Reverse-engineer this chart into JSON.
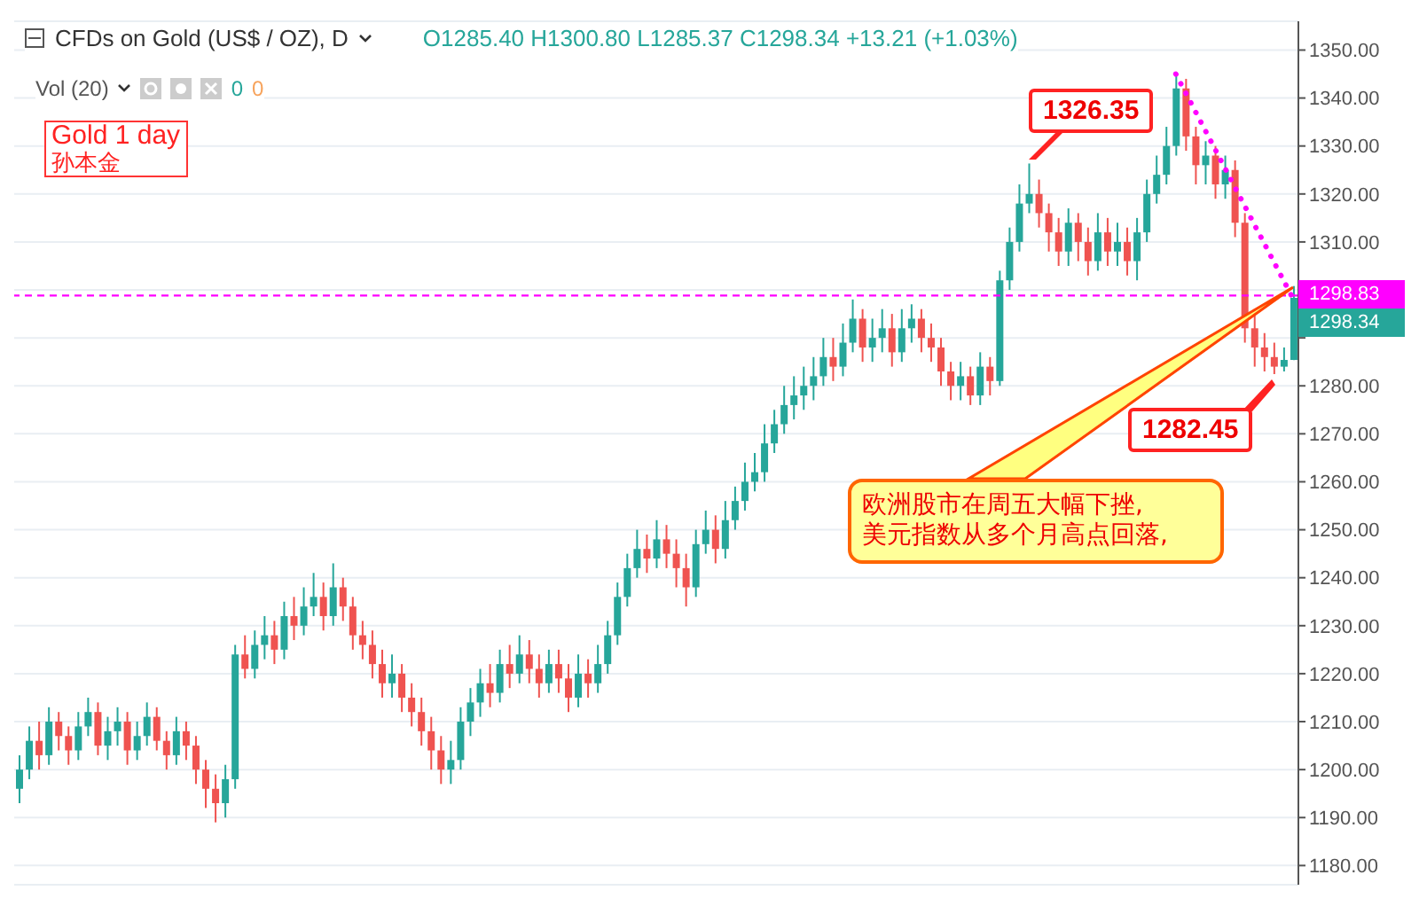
{
  "chart_data": {
    "type": "candlestick",
    "title": "CFDs on Gold (US$ / OZ), D",
    "subtitle": "O1285.40 H1300.80 L1285.37 C1298.34 +13.21 (+1.03%)",
    "categories": [
      null,
      null,
      null,
      null,
      null,
      null,
      null,
      null,
      null,
      null,
      null,
      null,
      null,
      null,
      null,
      null,
      null,
      null,
      null,
      null,
      null,
      null,
      null,
      null,
      null,
      null,
      null,
      null,
      null,
      null,
      null,
      null,
      null,
      null,
      null,
      null,
      null,
      null,
      null,
      null,
      null,
      null,
      null,
      null,
      null,
      null,
      null,
      null,
      null,
      null,
      null,
      null,
      null,
      null,
      null,
      null,
      null,
      null,
      null,
      null,
      null,
      null,
      null,
      null,
      null,
      null,
      null,
      null,
      null,
      null,
      null,
      null,
      null,
      null,
      null,
      null,
      null,
      null,
      null,
      null,
      null,
      null,
      null,
      null,
      null,
      null,
      null,
      null,
      null,
      null,
      null,
      null,
      null,
      null,
      null,
      null,
      null,
      null,
      null,
      null,
      null,
      null,
      null,
      null,
      null,
      null,
      null,
      null,
      null,
      null,
      null,
      null,
      null,
      null,
      null,
      null,
      null,
      null,
      null,
      null,
      null,
      null,
      null,
      null,
      null,
      null,
      null,
      null,
      null,
      null,
      null
    ],
    "ohlc": [
      [
        1196,
        1203,
        1193,
        1200
      ],
      [
        1200,
        1209,
        1198,
        1206
      ],
      [
        1206,
        1210,
        1200,
        1203
      ],
      [
        1203,
        1213,
        1201,
        1210
      ],
      [
        1210,
        1212,
        1204,
        1207
      ],
      [
        1207,
        1209,
        1201,
        1204
      ],
      [
        1204,
        1212,
        1202,
        1209
      ],
      [
        1209,
        1215,
        1207,
        1212
      ],
      [
        1212,
        1214,
        1203,
        1205
      ],
      [
        1205,
        1211,
        1202,
        1208
      ],
      [
        1208,
        1213,
        1205,
        1210
      ],
      [
        1210,
        1212,
        1201,
        1204
      ],
      [
        1204,
        1210,
        1202,
        1207
      ],
      [
        1207,
        1214,
        1205,
        1211
      ],
      [
        1211,
        1213,
        1204,
        1206
      ],
      [
        1206,
        1208,
        1200,
        1203
      ],
      [
        1203,
        1211,
        1201,
        1208
      ],
      [
        1208,
        1210,
        1202,
        1205
      ],
      [
        1205,
        1207,
        1197,
        1200
      ],
      [
        1200,
        1202,
        1192,
        1196
      ],
      [
        1196,
        1199,
        1189,
        1193
      ],
      [
        1193,
        1201,
        1190,
        1198
      ],
      [
        1198,
        1226,
        1196,
        1224
      ],
      [
        1224,
        1228,
        1219,
        1221
      ],
      [
        1221,
        1229,
        1219,
        1226
      ],
      [
        1226,
        1232,
        1223,
        1228
      ],
      [
        1228,
        1231,
        1222,
        1225
      ],
      [
        1225,
        1235,
        1223,
        1232
      ],
      [
        1232,
        1236,
        1227,
        1230
      ],
      [
        1230,
        1238,
        1228,
        1234
      ],
      [
        1234,
        1241,
        1232,
        1236
      ],
      [
        1236,
        1239,
        1229,
        1232
      ],
      [
        1232,
        1243,
        1230,
        1238
      ],
      [
        1238,
        1240,
        1231,
        1234
      ],
      [
        1234,
        1236,
        1225,
        1228
      ],
      [
        1228,
        1231,
        1223,
        1226
      ],
      [
        1226,
        1229,
        1219,
        1222
      ],
      [
        1222,
        1225,
        1215,
        1218
      ],
      [
        1218,
        1224,
        1215,
        1220
      ],
      [
        1220,
        1222,
        1212,
        1215
      ],
      [
        1215,
        1218,
        1209,
        1212
      ],
      [
        1212,
        1215,
        1205,
        1208
      ],
      [
        1208,
        1211,
        1200,
        1204
      ],
      [
        1204,
        1207,
        1197,
        1200
      ],
      [
        1200,
        1206,
        1197,
        1202
      ],
      [
        1202,
        1213,
        1200,
        1210
      ],
      [
        1210,
        1217,
        1207,
        1214
      ],
      [
        1214,
        1221,
        1211,
        1218
      ],
      [
        1218,
        1222,
        1213,
        1216
      ],
      [
        1216,
        1225,
        1214,
        1222
      ],
      [
        1222,
        1226,
        1217,
        1220
      ],
      [
        1220,
        1228,
        1218,
        1224
      ],
      [
        1224,
        1227,
        1218,
        1221
      ],
      [
        1221,
        1224,
        1215,
        1218
      ],
      [
        1218,
        1225,
        1216,
        1222
      ],
      [
        1222,
        1225,
        1216,
        1219
      ],
      [
        1219,
        1222,
        1212,
        1215
      ],
      [
        1215,
        1224,
        1213,
        1220
      ],
      [
        1220,
        1223,
        1215,
        1218
      ],
      [
        1218,
        1226,
        1216,
        1222
      ],
      [
        1222,
        1231,
        1220,
        1228
      ],
      [
        1228,
        1239,
        1226,
        1236
      ],
      [
        1236,
        1245,
        1234,
        1242
      ],
      [
        1242,
        1250,
        1240,
        1246
      ],
      [
        1246,
        1249,
        1241,
        1244
      ],
      [
        1244,
        1252,
        1242,
        1248
      ],
      [
        1248,
        1251,
        1242,
        1245
      ],
      [
        1245,
        1248,
        1238,
        1242
      ],
      [
        1242,
        1245,
        1234,
        1238
      ],
      [
        1238,
        1250,
        1236,
        1247
      ],
      [
        1247,
        1254,
        1245,
        1250
      ],
      [
        1250,
        1253,
        1243,
        1246
      ],
      [
        1246,
        1256,
        1244,
        1252
      ],
      [
        1252,
        1259,
        1250,
        1256
      ],
      [
        1256,
        1264,
        1254,
        1260
      ],
      [
        1260,
        1266,
        1258,
        1262
      ],
      [
        1262,
        1272,
        1260,
        1268
      ],
      [
        1268,
        1275,
        1266,
        1272
      ],
      [
        1272,
        1280,
        1270,
        1276
      ],
      [
        1276,
        1282,
        1273,
        1278
      ],
      [
        1278,
        1284,
        1275,
        1280
      ],
      [
        1280,
        1286,
        1277,
        1282
      ],
      [
        1282,
        1290,
        1280,
        1286
      ],
      [
        1286,
        1290,
        1281,
        1284
      ],
      [
        1284,
        1293,
        1282,
        1289
      ],
      [
        1289,
        1298,
        1287,
        1294
      ],
      [
        1294,
        1296,
        1285,
        1288
      ],
      [
        1288,
        1294,
        1285,
        1290
      ],
      [
        1290,
        1296,
        1287,
        1292
      ],
      [
        1292,
        1295,
        1284,
        1287
      ],
      [
        1287,
        1296,
        1285,
        1292
      ],
      [
        1292,
        1297,
        1289,
        1294
      ],
      [
        1294,
        1296,
        1287,
        1290
      ],
      [
        1290,
        1293,
        1285,
        1288
      ],
      [
        1288,
        1290,
        1280,
        1283
      ],
      [
        1283,
        1285,
        1277,
        1280
      ],
      [
        1280,
        1285,
        1277,
        1282
      ],
      [
        1282,
        1284,
        1276,
        1278
      ],
      [
        1278,
        1287,
        1276,
        1284
      ],
      [
        1284,
        1286,
        1278,
        1281
      ],
      [
        1281,
        1304,
        1280,
        1302
      ],
      [
        1302,
        1313,
        1300,
        1310
      ],
      [
        1310,
        1322,
        1308,
        1318
      ],
      [
        1318,
        1326.35,
        1316,
        1320
      ],
      [
        1320,
        1323,
        1313,
        1316
      ],
      [
        1316,
        1318,
        1308,
        1312
      ],
      [
        1312,
        1315,
        1305,
        1308
      ],
      [
        1308,
        1317,
        1305,
        1314
      ],
      [
        1314,
        1316,
        1306,
        1310
      ],
      [
        1310,
        1313,
        1303,
        1306
      ],
      [
        1306,
        1316,
        1304,
        1312
      ],
      [
        1312,
        1315,
        1305,
        1308
      ],
      [
        1308,
        1314,
        1305,
        1310
      ],
      [
        1310,
        1313,
        1303,
        1306
      ],
      [
        1306,
        1315,
        1302,
        1312
      ],
      [
        1312,
        1323,
        1310,
        1320
      ],
      [
        1320,
        1328,
        1318,
        1324
      ],
      [
        1324,
        1334,
        1322,
        1330
      ],
      [
        1330,
        1345,
        1328,
        1342
      ],
      [
        1342,
        1344,
        1329,
        1332
      ],
      [
        1332,
        1334,
        1322,
        1326
      ],
      [
        1326,
        1331,
        1322,
        1328
      ],
      [
        1328,
        1330,
        1319,
        1322
      ],
      [
        1322,
        1328,
        1319,
        1325
      ],
      [
        1325,
        1327,
        1311,
        1314
      ],
      [
        1314,
        1316,
        1289,
        1292
      ],
      [
        1292,
        1296,
        1284,
        1288
      ],
      [
        1288,
        1291,
        1283,
        1286
      ],
      [
        1286,
        1289,
        1282.45,
        1284
      ],
      [
        1284,
        1288,
        1283,
        1285.4
      ],
      [
        1285.4,
        1300.8,
        1285.37,
        1298.34
      ]
    ],
    "series": [
      {
        "type": "line",
        "values": [
          null,
          null,
          null,
          null,
          null,
          null,
          null,
          null,
          null,
          null,
          null,
          null,
          null,
          null,
          null,
          null,
          null,
          null,
          null,
          null,
          null,
          null,
          null,
          null,
          null,
          null,
          null,
          null,
          null,
          null,
          null,
          null,
          null,
          null,
          null,
          null,
          null,
          null,
          null,
          null,
          null,
          null,
          null,
          null,
          null,
          null,
          null,
          null,
          null,
          null,
          null,
          null,
          null,
          null,
          null,
          null,
          null,
          null,
          null,
          null,
          null,
          null,
          null,
          null,
          null,
          null,
          null,
          null,
          null,
          null,
          null,
          null,
          null,
          null,
          null,
          null,
          null,
          null,
          null,
          null,
          null,
          null,
          null,
          null,
          null,
          null,
          null,
          null,
          null,
          null,
          null,
          null,
          null,
          null,
          null,
          null,
          null,
          null,
          null,
          null,
          null,
          null,
          null,
          null,
          null,
          null,
          null,
          null,
          null,
          null,
          null,
          null,
          null,
          null,
          null,
          null,
          null,
          null,
          1345,
          null,
          null,
          null,
          null,
          null,
          null,
          null,
          null,
          null,
          null,
          null,
          1298
        ],
        "color": "#ff00ff",
        "line_style": "dotted"
      }
    ],
    "ylim": [
      1176,
      1356
    ],
    "yticks": [
      {
        "value": 1180,
        "label": "1180.00"
      },
      {
        "value": 1190,
        "label": "1190.00"
      },
      {
        "value": 1200,
        "label": "1200.00"
      },
      {
        "value": 1210,
        "label": "1210.00"
      },
      {
        "value": 1220,
        "label": "1220.00"
      },
      {
        "value": 1230,
        "label": "1230.00"
      },
      {
        "value": 1240,
        "label": "1240.00"
      },
      {
        "value": 1250,
        "label": "1250.00"
      },
      {
        "value": 1260,
        "label": "1260.00"
      },
      {
        "value": 1270,
        "label": "1270.00"
      },
      {
        "value": 1280,
        "label": "1280.00"
      },
      {
        "value": 1290,
        "label": null
      },
      {
        "value": 1300,
        "label": null
      },
      {
        "value": 1310,
        "label": "1310.00"
      },
      {
        "value": 1320,
        "label": "1320.00"
      },
      {
        "value": 1330,
        "label": "1330.00"
      },
      {
        "value": 1340,
        "label": "1340.00"
      },
      {
        "value": 1350,
        "label": "1350.00"
      }
    ],
    "grid": "y",
    "tick_labels": "y",
    "ref_lines": [
      {
        "axis": "y",
        "value": 1298.83,
        "label": "1298.83",
        "color": "#ff00ff",
        "line_style": "dashed"
      }
    ],
    "annotations": [
      "Vol (20)",
      "0",
      "0",
      "Gold 1 day",
      "孙本金",
      "1326.35",
      "1282.45",
      "欧洲股市在周五大幅下挫,\n美元指数从多个月高点回落,",
      "1298.34"
    ]
  }
}
